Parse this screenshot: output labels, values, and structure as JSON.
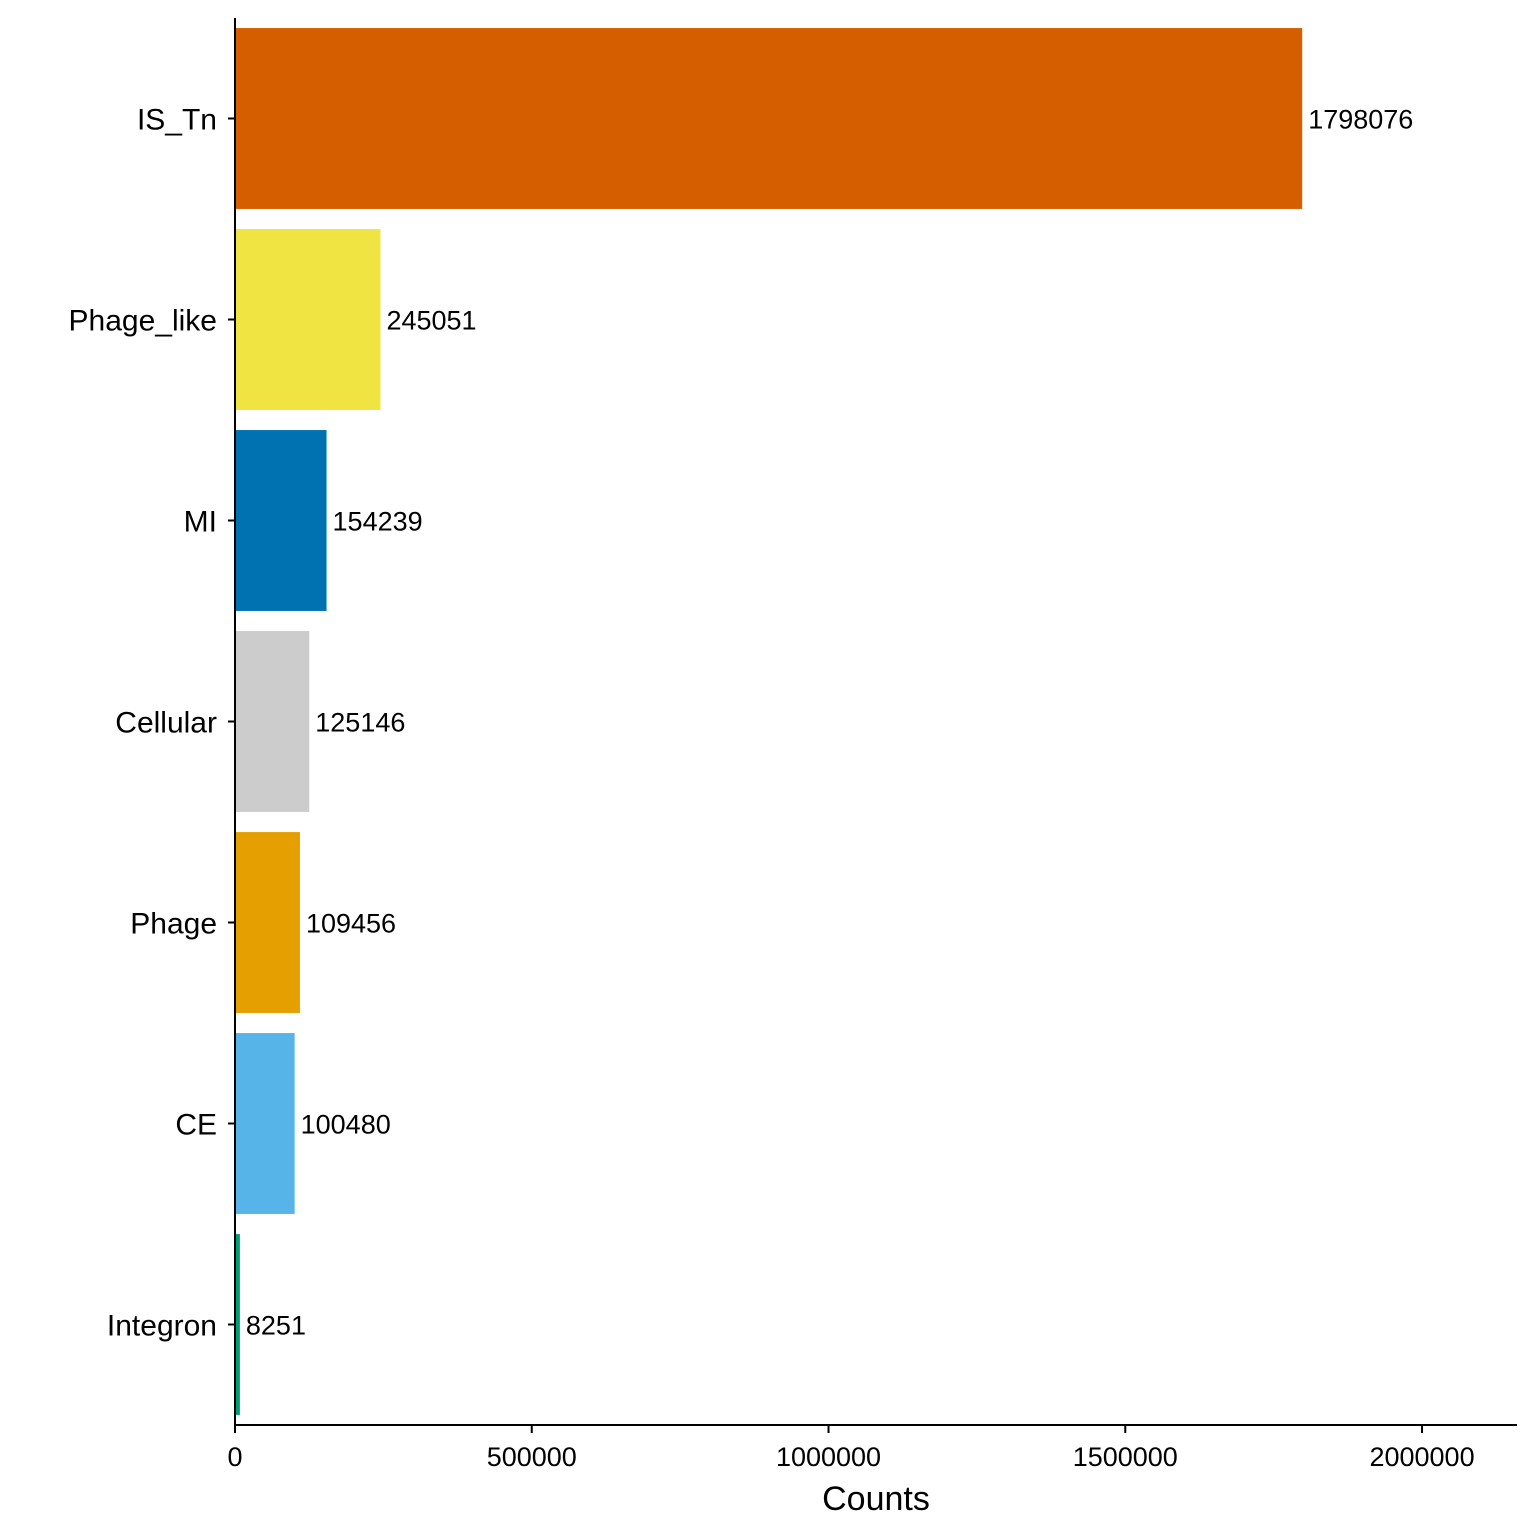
{
  "chart_data": {
    "type": "bar",
    "orientation": "horizontal",
    "title": "",
    "xlabel": "Counts",
    "ylabel": "",
    "xlim": [
      0,
      2160000
    ],
    "xticks": [
      0,
      500000,
      1000000,
      1500000,
      2000000
    ],
    "xtick_labels": [
      "0",
      "500000",
      "1000000",
      "1500000",
      "2000000"
    ],
    "grid": false,
    "legend": "none",
    "bars": [
      {
        "category": "IS_Tn",
        "value": 1798076,
        "label": "1798076",
        "color": "#D55E00"
      },
      {
        "category": "Phage_like",
        "value": 245051,
        "label": "245051",
        "color": "#F0E442"
      },
      {
        "category": "MI",
        "value": 154239,
        "label": "154239",
        "color": "#0072B2"
      },
      {
        "category": "Cellular",
        "value": 125146,
        "label": "125146",
        "color": "#CCCCCC"
      },
      {
        "category": "Phage",
        "value": 109456,
        "label": "109456",
        "color": "#E69F00"
      },
      {
        "category": "CE",
        "value": 100480,
        "label": "100480",
        "color": "#56B4E9"
      },
      {
        "category": "Integron",
        "value": 8251,
        "label": "8251",
        "color": "#009E73"
      }
    ]
  }
}
